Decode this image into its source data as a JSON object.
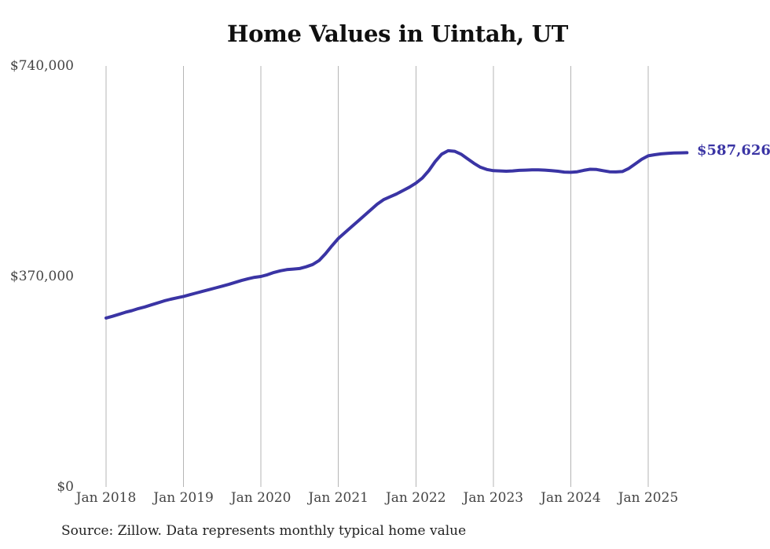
{
  "chart_data": {
    "type": "line",
    "title": "Home Values in Uintah, UT",
    "xlabel": "",
    "ylabel": "",
    "ylim": [
      0,
      740000
    ],
    "grid": "vertical-only",
    "legend": "none",
    "x_tick_labels": [
      "Jan 2018",
      "Jan 2019",
      "Jan 2020",
      "Jan 2021",
      "Jan 2022",
      "Jan 2023",
      "Jan 2024",
      "Jan 2025"
    ],
    "y_ticks": [
      {
        "value": 0,
        "label": "$0"
      },
      {
        "value": 370000,
        "label": "$370,000"
      },
      {
        "value": 740000,
        "label": "$740,000"
      }
    ],
    "series": [
      {
        "name": "Typical home value",
        "frequency": "monthly",
        "start": "2018-01",
        "end": "2025-07",
        "values": [
          297000,
          300000,
          303500,
          307000,
          310000,
          313500,
          316500,
          320000,
          323500,
          327000,
          330000,
          332500,
          335000,
          338000,
          341000,
          344000,
          347000,
          350000,
          353000,
          356000,
          359500,
          363000,
          366000,
          368500,
          370000,
          373000,
          377000,
          380000,
          382000,
          383000,
          384000,
          387000,
          391000,
          398000,
          410000,
          424000,
          437000,
          447000,
          457000,
          467000,
          477000,
          487000,
          497000,
          505000,
          510000,
          515000,
          521000,
          527000,
          534000,
          543000,
          556000,
          572000,
          585000,
          591000,
          590000,
          585000,
          577000,
          569000,
          562000,
          558000,
          556000,
          555500,
          555000,
          555500,
          556500,
          557000,
          557500,
          557500,
          557000,
          556000,
          555000,
          553500,
          553000,
          554000,
          556500,
          558500,
          558000,
          556000,
          554000,
          553800,
          554500,
          560000,
          568000,
          576000,
          582000,
          584000,
          585500,
          586500,
          587000,
          587300,
          587626
        ]
      }
    ],
    "last_value": 587626,
    "last_value_label": "$587,626"
  },
  "footer": {
    "source_note": "Source: Zillow. Data represents monthly typical home value"
  },
  "colors": {
    "line": "#3a34a4",
    "grid": "#b5b5b5",
    "title_text": "#101010",
    "tick_text": "#444444",
    "source_text": "#222222",
    "background": "#ffffff"
  }
}
